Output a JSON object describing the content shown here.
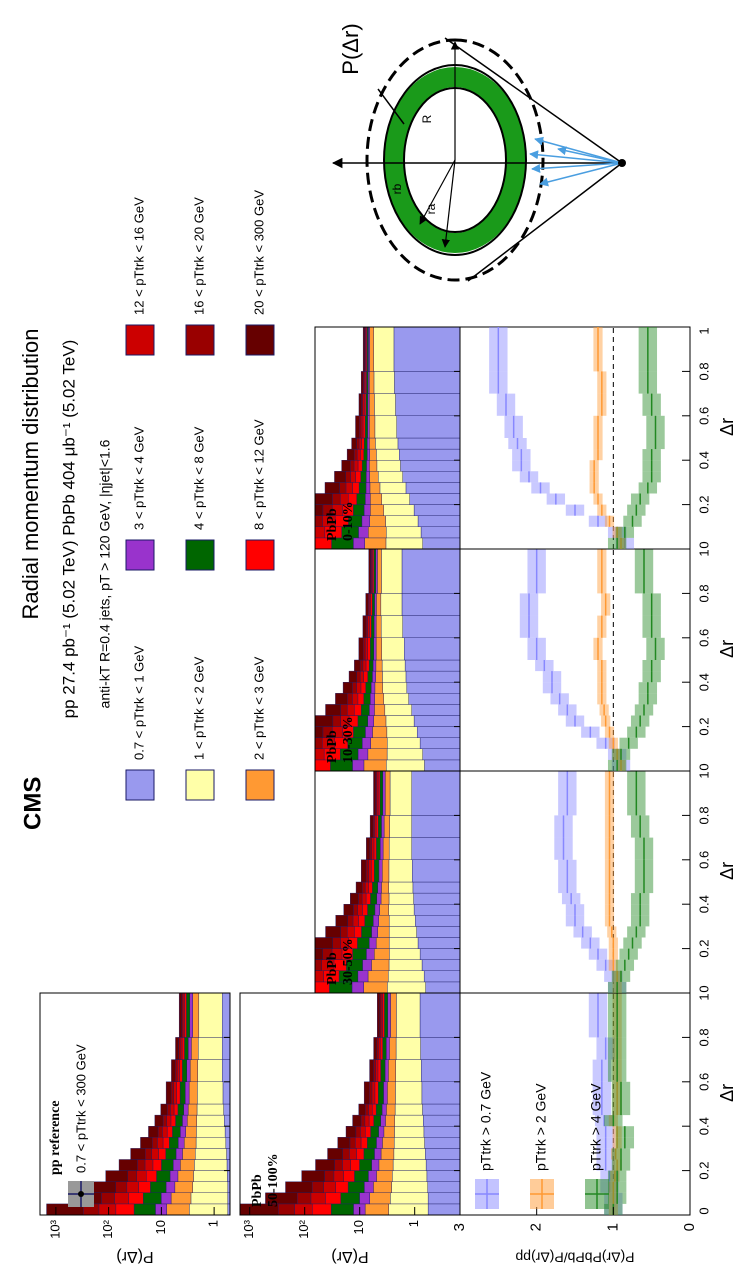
{
  "chart_data": {
    "type": "radial",
    "experiment": "CMS",
    "title": "Radial momentum distribution",
    "subtitle": "pp 27.4 pb⁻¹ (5.02 TeV)  PbPb 404 μb⁻¹ (5.02 TeV)",
    "selection": "anti-kT R=0.4 jets, pT > 120 GeV, |ηjet|<1.6",
    "diagram": {
      "title": "P(Δr)",
      "outer": "R",
      "inner": "rb",
      "outer_radius": "ra"
    },
    "xlabel": "Δr",
    "ylabel": "P(Δr)",
    "xlim": [
      0,
      1
    ],
    "xticks": [
      0,
      0.2,
      0.4,
      0.6,
      0.8,
      1
    ],
    "bins": [
      0,
      0.05,
      0.1,
      0.15,
      0.2,
      0.25,
      0.3,
      0.35,
      0.4,
      0.45,
      0.5,
      0.6,
      0.7,
      0.8,
      1.0
    ],
    "layers": [
      {
        "name": "0.7 < pTtrk < 1 GeV",
        "color": "#9999ee"
      },
      {
        "name": "1 < pTtrk < 2 GeV",
        "color": "#ffffa8"
      },
      {
        "name": "2 < pTtrk < 3 GeV",
        "color": "#ff9933"
      },
      {
        "name": "3 < pTtrk < 4 GeV",
        "color": "#9933cc"
      },
      {
        "name": "4 < pTtrk < 8 GeV",
        "color": "#006600"
      },
      {
        "name": "8 < pTtrk < 12 GeV",
        "color": "#ff0000"
      },
      {
        "name": "12 < pTtrk < 16 GeV",
        "color": "#cc0000"
      },
      {
        "name": "16 < pTtrk < 20 GeV",
        "color": "#990000"
      },
      {
        "name": "20 < pTtrk < 300 GeV",
        "color": "#660000"
      }
    ],
    "distributions": [
      {
        "label": [
          "pp reference"
        ],
        "legend": "0.7 < pTtrk < 300 GeV",
        "ylim": [
          0.5,
          2000
        ],
        "yticks": [
          1,
          10,
          {
            "value": 100,
            "label": "10²"
          },
          {
            "value": 1000,
            "label": "10³"
          }
        ],
        "stack": [
          [
            0.55,
            0.55,
            0.55,
            0.56,
            0.57,
            0.58,
            0.6,
            0.62,
            0.64,
            0.66,
            0.68,
            0.7,
            0.7,
            0.7
          ],
          [
            2.4,
            2.2,
            2.0,
            1.9,
            1.8,
            1.7,
            1.6,
            1.55,
            1.5,
            1.45,
            1.4,
            1.35,
            1.3,
            1.25
          ],
          [
            5,
            3.8,
            3,
            2.4,
            2,
            1.7,
            1.5,
            1.3,
            1.1,
            1,
            0.9,
            0.8,
            0.7,
            0.6
          ],
          [
            5,
            3.5,
            2.6,
            2,
            1.6,
            1.3,
            1.1,
            0.9,
            0.75,
            0.65,
            0.55,
            0.45,
            0.4,
            0.35
          ],
          [
            20,
            12,
            8,
            5.5,
            4,
            3,
            2.3,
            1.8,
            1.4,
            1.1,
            0.9,
            0.7,
            0.55,
            0.45
          ],
          [
            40,
            20,
            11,
            7,
            4.5,
            3,
            2.2,
            1.6,
            1.2,
            0.9,
            0.7,
            0.5,
            0.4,
            0.3
          ],
          [
            80,
            35,
            18,
            10,
            6,
            4,
            2.6,
            1.8,
            1.3,
            1,
            0.7,
            0.5,
            0.35,
            0.25
          ],
          [
            150,
            60,
            28,
            14,
            8,
            5,
            3,
            2,
            1.4,
            1,
            0.7,
            0.45,
            0.3,
            0.2
          ],
          [
            1200,
            380,
            150,
            70,
            35,
            18,
            10,
            6,
            4,
            2.5,
            1.6,
            1,
            0.7,
            0.5
          ]
        ]
      },
      {
        "label": [
          "PbPb",
          "50-100%"
        ],
        "ylim": [
          0.15,
          1500
        ],
        "yticks": [
          1,
          10,
          {
            "value": 100,
            "label": "10²"
          },
          {
            "value": 1000,
            "label": "10³"
          }
        ],
        "stack": [
          [
            0.57,
            0.57,
            0.58,
            0.6,
            0.62,
            0.64,
            0.66,
            0.68,
            0.7,
            0.72,
            0.74,
            0.76,
            0.78,
            0.8
          ],
          [
            2.4,
            2.2,
            2.05,
            1.95,
            1.85,
            1.75,
            1.7,
            1.65,
            1.6,
            1.55,
            1.5,
            1.45,
            1.4,
            1.35
          ],
          [
            5,
            3.8,
            3,
            2.4,
            2,
            1.7,
            1.5,
            1.3,
            1.1,
            1,
            0.9,
            0.8,
            0.7,
            0.6
          ],
          [
            5,
            3.5,
            2.6,
            2,
            1.6,
            1.3,
            1.1,
            0.9,
            0.75,
            0.65,
            0.55,
            0.45,
            0.4,
            0.35
          ],
          [
            20,
            12,
            8,
            5.5,
            4,
            3,
            2.3,
            1.8,
            1.4,
            1.1,
            0.9,
            0.7,
            0.55,
            0.45
          ],
          [
            40,
            20,
            11,
            7,
            4.5,
            3,
            2.2,
            1.6,
            1.2,
            0.9,
            0.7,
            0.5,
            0.4,
            0.3
          ],
          [
            80,
            35,
            18,
            10,
            6,
            4,
            2.6,
            1.8,
            1.3,
            1,
            0.7,
            0.5,
            0.35,
            0.25
          ],
          [
            150,
            60,
            28,
            14,
            8,
            5,
            3,
            2,
            1.4,
            1,
            0.7,
            0.45,
            0.3,
            0.2
          ],
          [
            1200,
            380,
            150,
            70,
            35,
            18,
            10,
            6,
            4,
            2.5,
            1.6,
            1,
            0.7,
            0.5
          ]
        ]
      },
      {
        "label": [
          "PbPb",
          "30-50%"
        ],
        "ylim": [
          0.15,
          60
        ],
        "stack": [
          [
            0.62,
            0.66,
            0.72,
            0.78,
            0.85,
            0.9,
            0.95,
            1.0,
            1.02,
            1.05,
            1.08,
            1.1,
            1.1,
            1.1
          ],
          [
            2.4,
            2.25,
            2.1,
            2,
            1.95,
            1.9,
            1.85,
            1.85,
            1.8,
            1.8,
            1.75,
            1.7,
            1.65,
            1.6
          ],
          [
            5,
            3.8,
            3,
            2.4,
            2,
            1.7,
            1.5,
            1.3,
            1.1,
            1,
            0.9,
            0.8,
            0.7,
            0.6
          ],
          [
            5,
            3.5,
            2.6,
            2,
            1.6,
            1.3,
            1.1,
            0.9,
            0.75,
            0.65,
            0.55,
            0.45,
            0.4,
            0.35
          ],
          [
            20,
            12,
            8,
            5.5,
            4,
            3,
            2.3,
            1.8,
            1.4,
            1.1,
            0.9,
            0.7,
            0.55,
            0.45
          ],
          [
            40,
            20,
            11,
            7,
            4.5,
            3,
            2.2,
            1.6,
            1.2,
            0.9,
            0.7,
            0.5,
            0.4,
            0.3
          ],
          [
            80,
            35,
            18,
            10,
            6,
            4,
            2.6,
            1.8,
            1.3,
            1,
            0.7,
            0.5,
            0.35,
            0.25
          ],
          [
            150,
            60,
            28,
            14,
            8,
            5,
            3,
            2,
            1.4,
            1,
            0.7,
            0.45,
            0.3,
            0.2
          ],
          [
            1200,
            380,
            150,
            70,
            35,
            18,
            10,
            6,
            4,
            2.5,
            1.6,
            1,
            0.7,
            0.5
          ]
        ]
      },
      {
        "label": [
          "PbPb",
          "10-30%"
        ],
        "ylim": [
          0.15,
          60
        ],
        "stack": [
          [
            0.65,
            0.7,
            0.78,
            0.88,
            1,
            1.1,
            1.25,
            1.35,
            1.4,
            1.45,
            1.5,
            1.6,
            1.65,
            1.65
          ],
          [
            2.5,
            2.35,
            2.25,
            2.2,
            2.2,
            2.25,
            2.25,
            2.3,
            2.3,
            2.3,
            2.3,
            2.3,
            2.3,
            2.2
          ],
          [
            4.8,
            3.7,
            3,
            2.5,
            2.1,
            1.8,
            1.6,
            1.4,
            1.2,
            1.1,
            1,
            0.9,
            0.8,
            0.7
          ],
          [
            4.8,
            3.4,
            2.5,
            1.9,
            1.5,
            1.2,
            1,
            0.85,
            0.7,
            0.6,
            0.5,
            0.42,
            0.37,
            0.32
          ],
          [
            19,
            11,
            7,
            4.8,
            3.4,
            2.5,
            1.9,
            1.5,
            1.2,
            0.95,
            0.8,
            0.62,
            0.5,
            0.4
          ],
          [
            40,
            20,
            11,
            7,
            4.5,
            3,
            2.2,
            1.6,
            1.2,
            0.9,
            0.7,
            0.5,
            0.4,
            0.3
          ],
          [
            80,
            35,
            18,
            10,
            6,
            4,
            2.6,
            1.8,
            1.3,
            1,
            0.7,
            0.5,
            0.35,
            0.25
          ],
          [
            150,
            60,
            28,
            14,
            8,
            5,
            3,
            2,
            1.4,
            1,
            0.7,
            0.45,
            0.3,
            0.2
          ],
          [
            1200,
            380,
            150,
            70,
            35,
            18,
            10,
            6,
            4,
            2.5,
            1.6,
            1,
            0.7,
            0.5
          ]
        ]
      },
      {
        "label": [
          "PbPb",
          "0-10%"
        ],
        "ylim": [
          0.15,
          60
        ],
        "stack": [
          [
            0.7,
            0.75,
            0.85,
            1.0,
            1.2,
            1.4,
            1.6,
            1.75,
            1.85,
            1.95,
            2.05,
            2.15,
            2.25,
            2.3
          ],
          [
            2.5,
            2.4,
            2.4,
            2.5,
            2.6,
            2.7,
            2.8,
            2.9,
            2.9,
            3,
            3,
            3,
            3,
            3
          ],
          [
            4.5,
            3.5,
            3,
            2.6,
            2.3,
            2.1,
            1.9,
            1.7,
            1.5,
            1.4,
            1.3,
            1.2,
            1.1,
            1
          ],
          [
            4.6,
            3.3,
            2.4,
            1.8,
            1.4,
            1.1,
            0.95,
            0.8,
            0.66,
            0.57,
            0.48,
            0.4,
            0.35,
            0.3
          ],
          [
            18,
            10,
            6.4,
            4.4,
            3.2,
            2.4,
            1.8,
            1.4,
            1.1,
            0.9,
            0.72,
            0.56,
            0.45,
            0.36
          ],
          [
            40,
            20,
            11,
            7,
            4.5,
            3,
            2.2,
            1.6,
            1.2,
            0.9,
            0.7,
            0.5,
            0.4,
            0.3
          ],
          [
            80,
            35,
            18,
            10,
            6,
            4,
            2.6,
            1.8,
            1.3,
            1,
            0.7,
            0.5,
            0.35,
            0.25
          ],
          [
            150,
            60,
            28,
            14,
            8,
            5,
            3,
            2,
            1.4,
            1,
            0.7,
            0.45,
            0.3,
            0.2
          ],
          [
            1200,
            380,
            150,
            70,
            35,
            18,
            10,
            6,
            4,
            2.5,
            1.6,
            1,
            0.7,
            0.5
          ]
        ]
      }
    ],
    "ratio": {
      "ylabel": "P(Δr)PbPb/P(Δr)pp",
      "ylim": [
        0,
        3
      ],
      "yticks": [
        0,
        1,
        2,
        3
      ],
      "series": [
        {
          "name": "pTtrk > 0.7 GeV",
          "color": "#8888ff",
          "error": 0.12
        },
        {
          "name": "pTtrk > 2 GeV",
          "color": "#ff9933",
          "error": 0.06
        },
        {
          "name": "pTtrk > 4 GeV",
          "color": "#228822",
          "error": 0.12
        }
      ],
      "panels": [
        {
          "series": [
            {
              "values": [
                1.0,
                1.0,
                1.05,
                1.05,
                1.1,
                1.1,
                1.1,
                1.1,
                1.12,
                1.15,
                1.15,
                1.15,
                1.1,
                1.2
              ]
            },
            {
              "values": [
                1,
                1,
                1,
                0.98,
                0.95,
                0.97,
                0.95,
                0.95,
                1,
                0.95,
                0.95,
                0.95,
                0.95,
                0.95
              ]
            },
            {
              "values": [
                1,
                0.95,
                0.95,
                0.95,
                0.9,
                0.9,
                0.85,
                0.85,
                1,
                0.9,
                0.9,
                0.95,
                0.95,
                0.95
              ]
            }
          ]
        },
        {
          "series": [
            {
              "values": [
                0.95,
                1.0,
                1.1,
                1.2,
                1.3,
                1.4,
                1.5,
                1.5,
                1.55,
                1.6,
                1.6,
                1.65,
                1.65,
                1.6
              ]
            },
            {
              "values": [
                0.95,
                0.95,
                1.0,
                1.0,
                1.0,
                1.02,
                1.05,
                1.05,
                1.05,
                1.05,
                1.05,
                1.05,
                1.05,
                1.05
              ]
            },
            {
              "values": [
                0.95,
                0.9,
                0.85,
                0.8,
                0.75,
                0.7,
                0.65,
                0.65,
                0.65,
                0.6,
                0.6,
                0.6,
                0.65,
                0.7
              ]
            }
          ]
        },
        {
          "series": [
            {
              "values": [
                0.9,
                0.95,
                1.1,
                1.3,
                1.5,
                1.6,
                1.7,
                1.8,
                1.8,
                1.9,
                2.0,
                2.1,
                2.1,
                2.0
              ]
            },
            {
              "values": [
                0.9,
                0.95,
                1.0,
                1.05,
                1.1,
                1.12,
                1.15,
                1.15,
                1.15,
                1.15,
                1.2,
                1.15,
                1.1,
                1.15
              ]
            },
            {
              "values": [
                0.95,
                0.9,
                0.8,
                0.7,
                0.65,
                0.6,
                0.55,
                0.55,
                0.5,
                0.5,
                0.45,
                0.5,
                0.5,
                0.6
              ]
            }
          ]
        },
        {
          "series": [
            {
              "values": [
                0.85,
                0.95,
                1.2,
                1.5,
                1.75,
                1.95,
                2.1,
                2.2,
                2.2,
                2.25,
                2.3,
                2.4,
                2.5,
                2.5
              ]
            },
            {
              "values": [
                0.9,
                0.95,
                1.05,
                1.15,
                1.2,
                1.25,
                1.25,
                1.25,
                1.2,
                1.2,
                1.2,
                1.15,
                1.15,
                1.2
              ]
            },
            {
              "values": [
                0.95,
                0.85,
                0.75,
                0.7,
                0.65,
                0.55,
                0.5,
                0.5,
                0.5,
                0.45,
                0.45,
                0.5,
                0.55,
                0.55
              ]
            }
          ]
        }
      ]
    }
  }
}
